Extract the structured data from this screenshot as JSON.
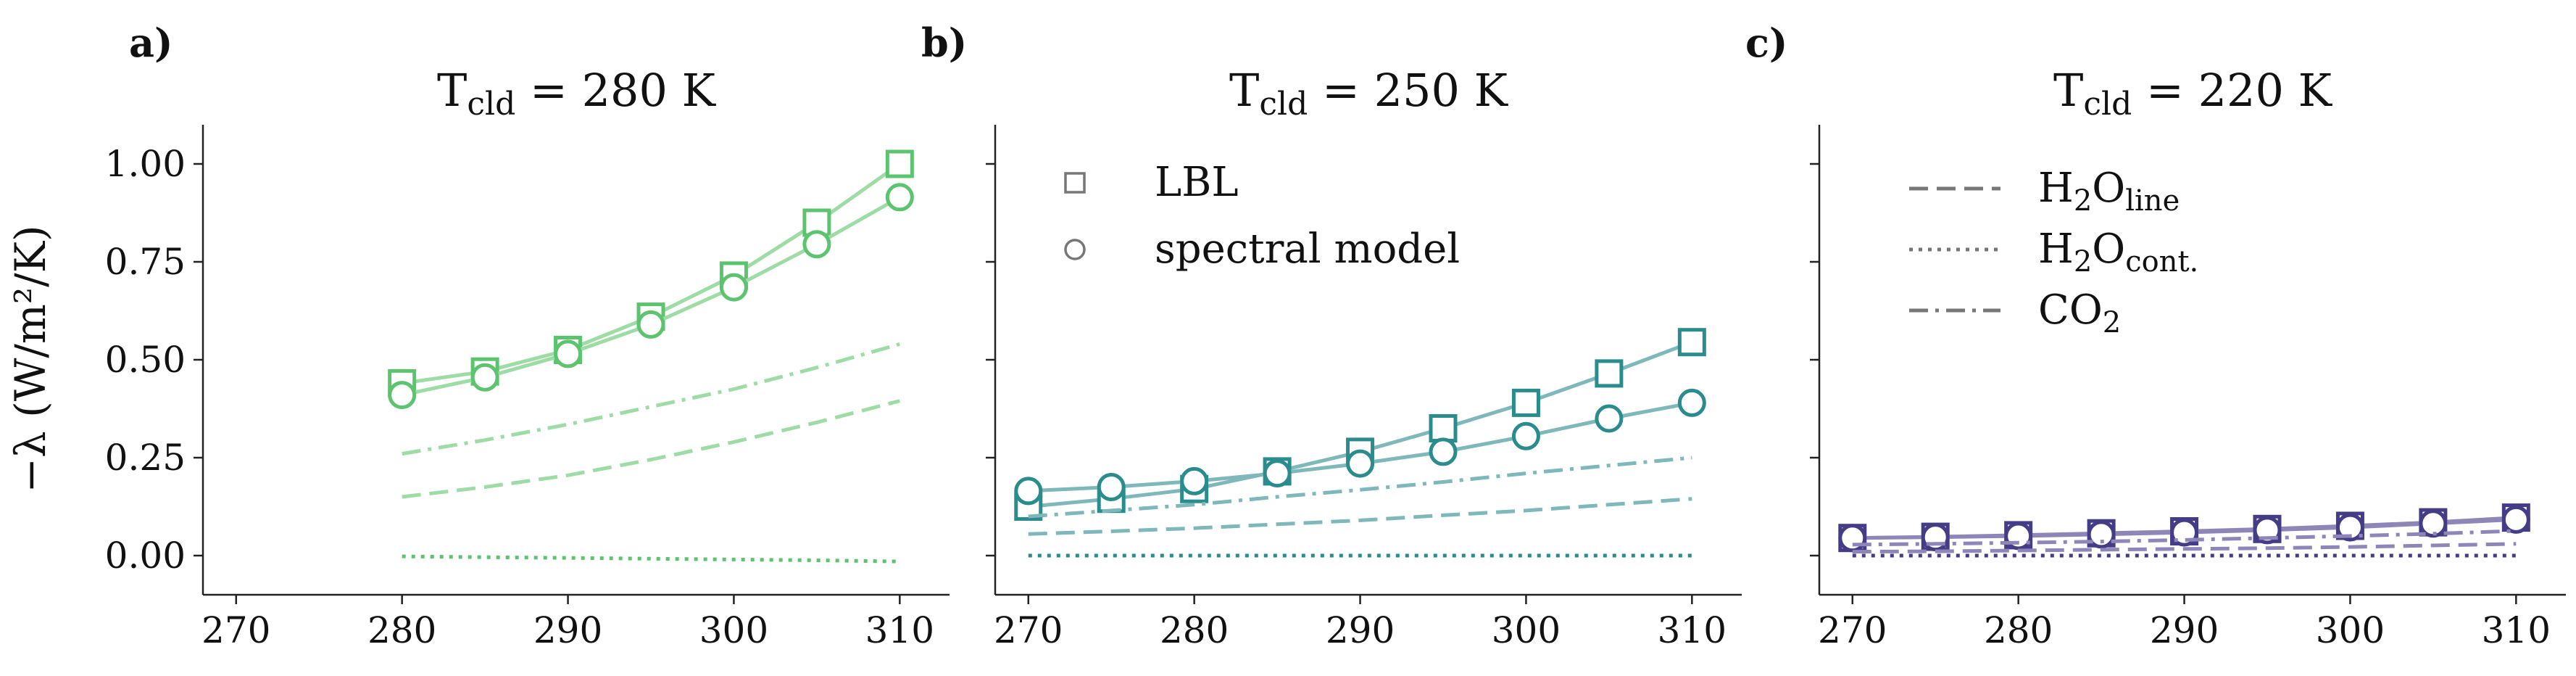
{
  "figure": {
    "ylabel": "−λ (W/m²/K)",
    "legend_markers": [
      {
        "marker": "square",
        "label": "LBL"
      },
      {
        "marker": "circle",
        "label": "spectral model"
      }
    ],
    "legend_lines": [
      {
        "style": "dashed",
        "label": "H",
        "sub": "2",
        "mid": "O",
        "sub2": "line"
      },
      {
        "style": "dotted",
        "label": "H",
        "sub": "2",
        "mid": "O",
        "sub2": "cont."
      },
      {
        "style": "dashdot",
        "label": "CO",
        "sub": "2",
        "mid": "",
        "sub2": ""
      }
    ]
  },
  "chart_data": [
    {
      "type": "line",
      "panel_label": "a)",
      "title_main": "T",
      "title_sub": "cld",
      "title_rest": " = 280 K",
      "color": "#5cc46e",
      "color_light": "#9edca6",
      "xlim": [
        268,
        313
      ],
      "ylim": [
        -0.1,
        1.1
      ],
      "xticks": [
        "270",
        "280",
        "290",
        "300",
        "310"
      ],
      "yticks": [
        "0.00",
        "0.25",
        "0.50",
        "0.75",
        "1.00"
      ],
      "x": [
        280,
        285,
        290,
        295,
        300,
        305,
        310
      ],
      "series": [
        {
          "name": "LBL",
          "marker": "square",
          "values": [
            0.44,
            0.47,
            0.525,
            0.61,
            0.715,
            0.85,
            1.0
          ]
        },
        {
          "name": "spectral model",
          "marker": "circle",
          "values": [
            0.41,
            0.455,
            0.515,
            0.59,
            0.685,
            0.795,
            0.915
          ]
        },
        {
          "name": "H2O line",
          "style": "dashed",
          "values": [
            0.15,
            0.175,
            0.205,
            0.245,
            0.29,
            0.34,
            0.395
          ]
        },
        {
          "name": "H2O cont.",
          "style": "dotted",
          "values": [
            -0.002,
            -0.004,
            -0.006,
            -0.008,
            -0.01,
            -0.012,
            -0.015
          ]
        },
        {
          "name": "CO2",
          "style": "dashdot",
          "values": [
            0.26,
            0.295,
            0.335,
            0.38,
            0.425,
            0.48,
            0.54
          ]
        }
      ]
    },
    {
      "type": "line",
      "panel_label": "b)",
      "title_main": "T",
      "title_sub": "cld",
      "title_rest": " = 250 K",
      "color": "#2a8c8c",
      "color_light": "#7fb8ba",
      "xlim": [
        268,
        313
      ],
      "ylim": [
        -0.1,
        1.1
      ],
      "xticks": [
        "270",
        "280",
        "290",
        "300",
        "310"
      ],
      "yticks": [
        "0.00",
        "0.25",
        "0.50",
        "0.75",
        "1.00"
      ],
      "x": [
        270,
        275,
        280,
        285,
        290,
        295,
        300,
        305,
        310
      ],
      "series": [
        {
          "name": "LBL",
          "marker": "square",
          "values": [
            0.125,
            0.145,
            0.17,
            0.215,
            0.265,
            0.325,
            0.39,
            0.465,
            0.545
          ]
        },
        {
          "name": "spectral model",
          "marker": "circle",
          "values": [
            0.165,
            0.175,
            0.19,
            0.21,
            0.235,
            0.265,
            0.305,
            0.35,
            0.39
          ]
        },
        {
          "name": "H2O line",
          "style": "dashed",
          "values": [
            0.055,
            0.062,
            0.07,
            0.08,
            0.09,
            0.103,
            0.115,
            0.13,
            0.145
          ]
        },
        {
          "name": "H2O cont.",
          "style": "dotted",
          "values": [
            0.0,
            0.0,
            0.0,
            0.0,
            0.0,
            0.0,
            0.0,
            0.0,
            0.0
          ]
        },
        {
          "name": "CO2",
          "style": "dashdot",
          "values": [
            0.1,
            0.115,
            0.13,
            0.15,
            0.168,
            0.188,
            0.21,
            0.23,
            0.25
          ]
        }
      ]
    },
    {
      "type": "line",
      "panel_label": "c)",
      "title_main": "T",
      "title_sub": "cld",
      "title_rest": " = 220 K",
      "color": "#453c86",
      "color_light": "#8e86b8",
      "xlim": [
        268,
        313
      ],
      "ylim": [
        -0.1,
        1.1
      ],
      "xticks": [
        "270",
        "280",
        "290",
        "300",
        "310"
      ],
      "yticks": [
        "0.00",
        "0.25",
        "0.50",
        "0.75",
        "1.00"
      ],
      "x": [
        270,
        275,
        280,
        285,
        290,
        295,
        300,
        305,
        310
      ],
      "series": [
        {
          "name": "LBL",
          "marker": "square",
          "values": [
            0.045,
            0.048,
            0.052,
            0.057,
            0.062,
            0.068,
            0.076,
            0.085,
            0.097
          ]
        },
        {
          "name": "spectral model",
          "marker": "circle",
          "values": [
            0.045,
            0.047,
            0.05,
            0.054,
            0.059,
            0.065,
            0.072,
            0.082,
            0.092
          ]
        },
        {
          "name": "H2O line",
          "style": "dashed",
          "values": [
            0.01,
            0.011,
            0.013,
            0.015,
            0.017,
            0.019,
            0.022,
            0.026,
            0.03
          ]
        },
        {
          "name": "H2O cont.",
          "style": "dotted",
          "values": [
            0.0,
            0.0,
            0.0,
            0.0,
            0.0,
            0.0,
            0.0,
            0.0,
            0.0
          ]
        },
        {
          "name": "CO2",
          "style": "dashdot",
          "values": [
            0.028,
            0.03,
            0.033,
            0.036,
            0.04,
            0.045,
            0.05,
            0.056,
            0.063
          ]
        }
      ]
    }
  ]
}
